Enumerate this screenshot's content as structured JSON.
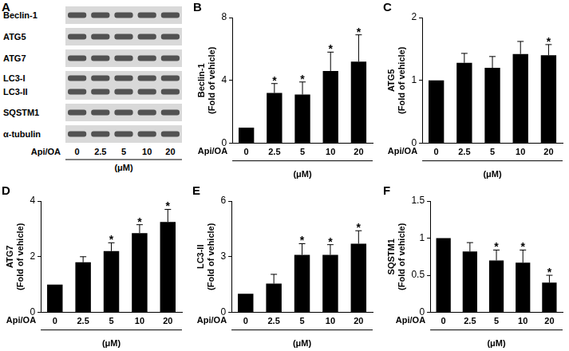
{
  "blot": {
    "title": "A",
    "rows": [
      {
        "labels": [
          "Beclin-1"
        ]
      },
      {
        "labels": [
          "ATG5"
        ]
      },
      {
        "labels": [
          "ATG7"
        ]
      },
      {
        "labels": [
          "LC3-I",
          "LC3-II"
        ]
      },
      {
        "labels": [
          "SQSTM1"
        ]
      },
      {
        "labels": [
          "α-tubulin"
        ]
      }
    ],
    "lanes": [
      "0",
      "2.5",
      "5",
      "10",
      "20"
    ],
    "lane_row_label": "Api/OA",
    "unit_label": "(μM)"
  },
  "chart_data": [
    {
      "type": "bar",
      "title": "B",
      "ylabel": [
        "Beclin-1",
        "(Fold of vehicle)"
      ],
      "xlabel": "(μM)",
      "x_row_label": "Api/OA",
      "categories": [
        "0",
        "2.5",
        "5",
        "10",
        "20"
      ],
      "values": [
        1,
        3.2,
        3.1,
        4.6,
        5.2
      ],
      "errors": [
        0,
        0.6,
        0.8,
        1.2,
        1.7
      ],
      "annotations": [
        null,
        "*",
        "*",
        "*",
        "*"
      ],
      "color": "#000000",
      "ylim": [
        0,
        8
      ],
      "yticks": [
        0,
        4,
        8
      ],
      "grid": false
    },
    {
      "type": "bar",
      "title": "C",
      "ylabel": [
        "ATG5",
        "(Fold of vehicle)"
      ],
      "xlabel": "(μM)",
      "x_row_label": "Api/OA",
      "categories": [
        "0",
        "2.5",
        "5",
        "10",
        "20"
      ],
      "values": [
        1,
        1.28,
        1.2,
        1.42,
        1.4
      ],
      "errors": [
        0,
        0.15,
        0.18,
        0.2,
        0.17
      ],
      "annotations": [
        null,
        null,
        null,
        null,
        "*"
      ],
      "color": "#000000",
      "ylim": [
        0,
        2
      ],
      "yticks": [
        0,
        1,
        2
      ],
      "grid": false
    },
    {
      "type": "bar",
      "title": "D",
      "ylabel": [
        "ATG7",
        "(Fold of vehicle)"
      ],
      "xlabel": "(μM)",
      "x_row_label": "Api/OA",
      "categories": [
        "0",
        "2.5",
        "5",
        "10",
        "20"
      ],
      "values": [
        1,
        1.8,
        2.2,
        2.85,
        3.25
      ],
      "errors": [
        0,
        0.2,
        0.3,
        0.3,
        0.45
      ],
      "annotations": [
        null,
        null,
        "*",
        "*",
        "*"
      ],
      "color": "#000000",
      "ylim": [
        0,
        4
      ],
      "yticks": [
        0,
        2,
        4
      ],
      "grid": false
    },
    {
      "type": "bar",
      "title": "E",
      "ylabel": [
        "LC3-II",
        "(Fold of vehicle)"
      ],
      "xlabel": "(μM)",
      "x_row_label": "Api/OA",
      "categories": [
        "0",
        "2.5",
        "5",
        "10",
        "20"
      ],
      "values": [
        1,
        1.55,
        3.1,
        3.1,
        3.7
      ],
      "errors": [
        0,
        0.5,
        0.6,
        0.55,
        0.7
      ],
      "annotations": [
        null,
        null,
        "*",
        "*",
        "*"
      ],
      "color": "#000000",
      "ylim": [
        0,
        6
      ],
      "yticks": [
        0,
        3,
        6
      ],
      "grid": false
    },
    {
      "type": "bar",
      "title": "F",
      "ylabel": [
        "SQSTM1",
        "(Fold of vehicle)"
      ],
      "xlabel": "(μM)",
      "x_row_label": "Api/OA",
      "categories": [
        "0",
        "2.5",
        "5",
        "10",
        "20"
      ],
      "values": [
        1,
        0.82,
        0.7,
        0.67,
        0.4
      ],
      "errors": [
        0,
        0.12,
        0.14,
        0.17,
        0.1
      ],
      "annotations": [
        null,
        null,
        "*",
        "*",
        "*"
      ],
      "color": "#000000",
      "ylim": [
        0,
        1.5
      ],
      "yticks": [
        0,
        0.5,
        1,
        1.5
      ],
      "grid": false
    }
  ]
}
